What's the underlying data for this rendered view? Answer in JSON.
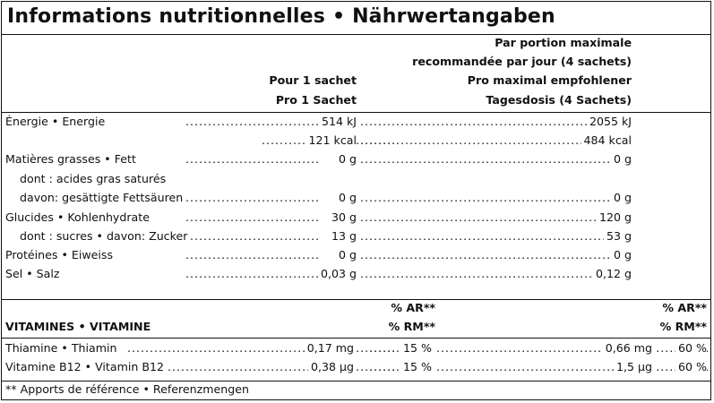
{
  "title": "Informations nutritionnelles • Nährwertangaben",
  "header": {
    "per_sachet": [
      "Pour 1 sachet",
      "Pro 1 Sachet"
    ],
    "per_max": [
      "Par portion maximale",
      "recommandée par jour (4 sachets)",
      "Pro maximal empfohlener",
      "Tagesdosis (4 Sachets)"
    ]
  },
  "rows": [
    {
      "label": "Énergie • Energie",
      "v1": "514 kJ",
      "v2": "2055 kJ"
    },
    {
      "label": "",
      "v1": "121 kcal",
      "v2": "484 kcal"
    },
    {
      "label": "Matières grasses • Fett",
      "v1": "0 g",
      "v2": "0 g"
    },
    {
      "label": "dont : acides gras saturés",
      "v1": "",
      "v2": ""
    },
    {
      "label": "davon: gesättigte Fettsäuren",
      "v1": "0 g",
      "v2": "0 g"
    },
    {
      "label": "Glucides • Kohlenhydrate",
      "v1": "30 g",
      "v2": "120 g"
    },
    {
      "label": "dont : sucres • davon: Zucker",
      "v1": "13 g",
      "v2": "53 g"
    },
    {
      "label": "Protéines • Eiweiss",
      "v1": "0 g",
      "v2": "0 g"
    },
    {
      "label": "Sel • Salz",
      "v1": "0,03 g",
      "v2": "0,12 g"
    }
  ],
  "vitamins": {
    "heading": "VITAMINES • VITAMINE",
    "ar_label": "% AR**",
    "rm_label": "% RM**",
    "rows": [
      {
        "label": "Thiamine • Thiamin",
        "v1": "0,17 mg",
        "p1": "15 %",
        "v2": "0,66 mg",
        "p2": "60 %"
      },
      {
        "label": "Vitamine B12 • Vitamin B12",
        "v1": "0,38 µg",
        "p1": "15 %",
        "v2": "1,5 µg",
        "p2": "60 %"
      }
    ]
  },
  "footnote": "** Apports de référence • Referenzmengen"
}
